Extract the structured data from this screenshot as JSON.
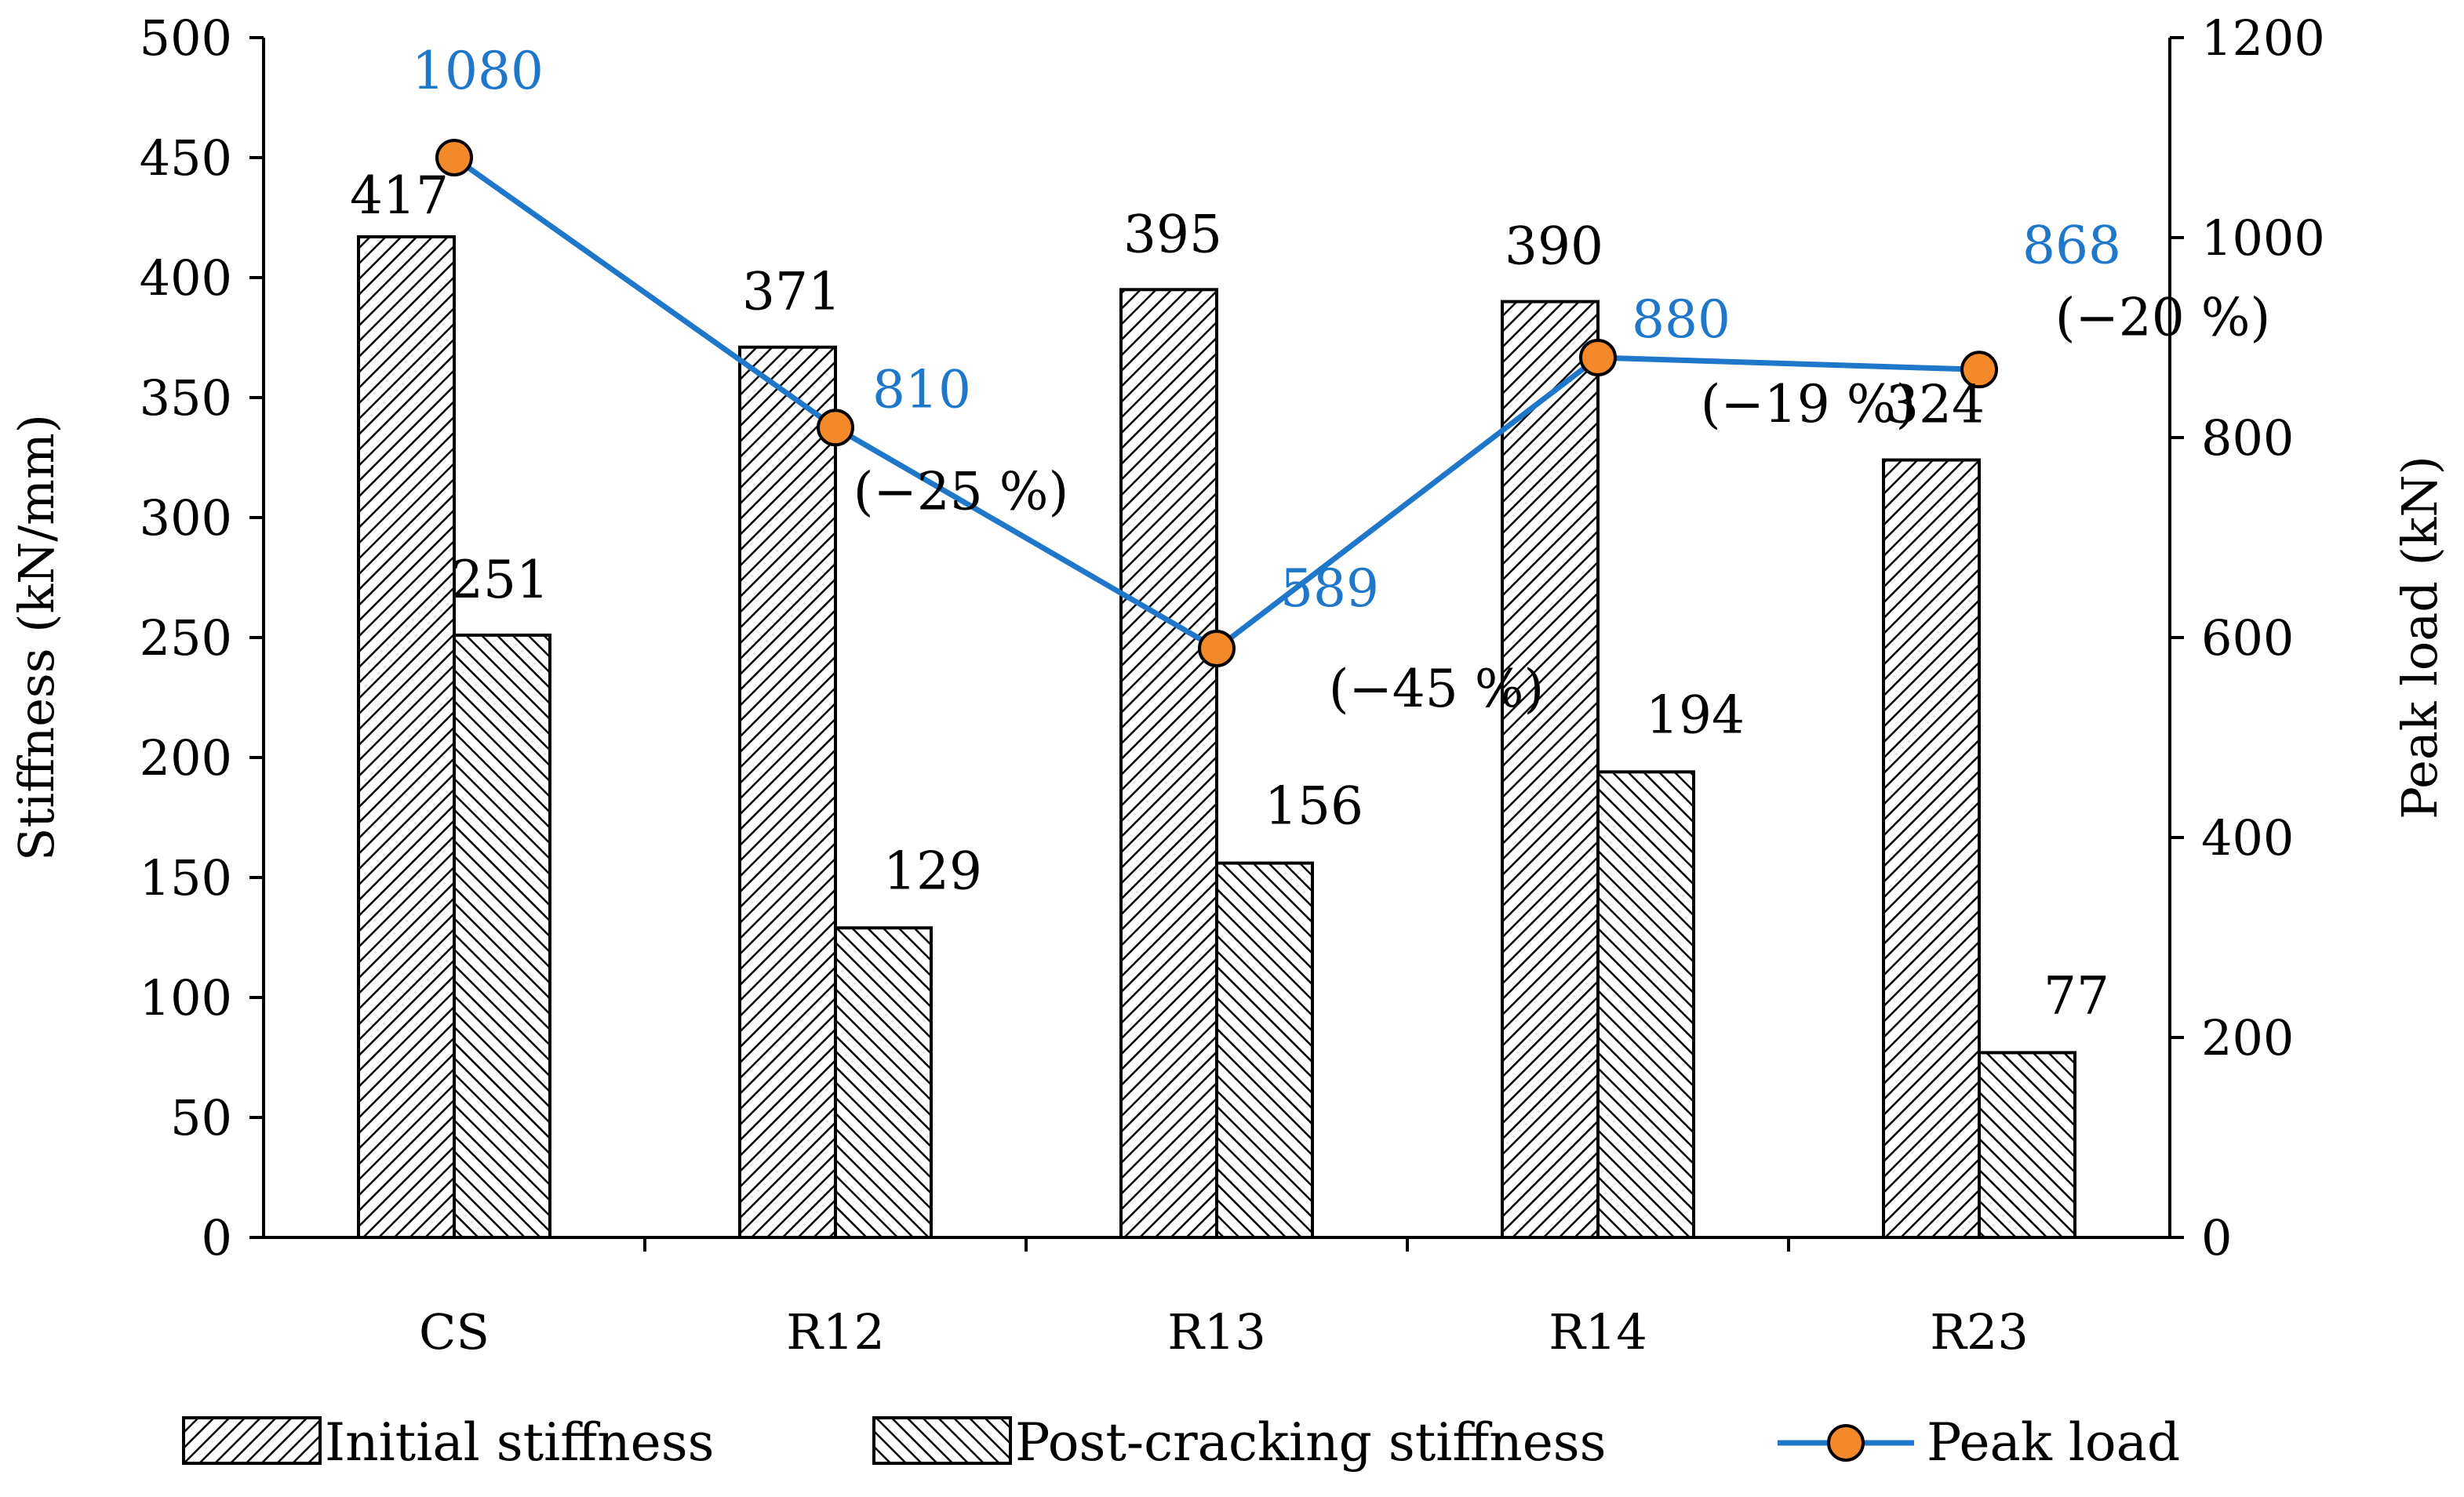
{
  "chart_data": {
    "type": "bar",
    "title": "",
    "categories": [
      "CS",
      "R12",
      "R13",
      "R14",
      "R23"
    ],
    "series": [
      {
        "name": "Initial stiffness",
        "type": "bar",
        "axis": "left",
        "values": [
          417,
          371,
          395,
          390,
          324
        ],
        "labels": [
          "417",
          "371",
          "395",
          "390",
          "324"
        ]
      },
      {
        "name": "Post-cracking stiffness",
        "type": "bar",
        "axis": "left",
        "values": [
          251,
          129,
          156,
          194,
          77
        ],
        "labels": [
          "251",
          "129",
          "156",
          "194",
          "77"
        ]
      },
      {
        "name": "Peak load",
        "type": "line",
        "axis": "right",
        "values": [
          1080,
          810,
          589,
          880,
          868
        ],
        "labels": [
          "1080",
          "810",
          "589",
          "880",
          "868"
        ],
        "annotations": [
          "",
          "(−25 %)",
          "(−45 %)",
          "(−19 %)",
          "(−20 %)"
        ]
      }
    ],
    "ylabel": "Stiffness (kN/mm)",
    "y2label": "Peak load (kN)",
    "ylim": [
      0,
      500
    ],
    "y2lim": [
      0,
      1200
    ],
    "yticks": [
      "0",
      "50",
      "100",
      "150",
      "200",
      "250",
      "300",
      "350",
      "400",
      "450",
      "500"
    ],
    "y2ticks": [
      "0",
      "200",
      "400",
      "600",
      "800",
      "1000",
      "1200"
    ],
    "legend": [
      "Initial stiffness",
      "Post-cracking stiffness",
      "Peak load"
    ],
    "legend_position": "bottom",
    "grid": false,
    "colors": {
      "line": "#1f77c9",
      "marker_fill": "#f4892a",
      "bar_edge": "#000000",
      "bar_fill": "#ffffff"
    }
  }
}
